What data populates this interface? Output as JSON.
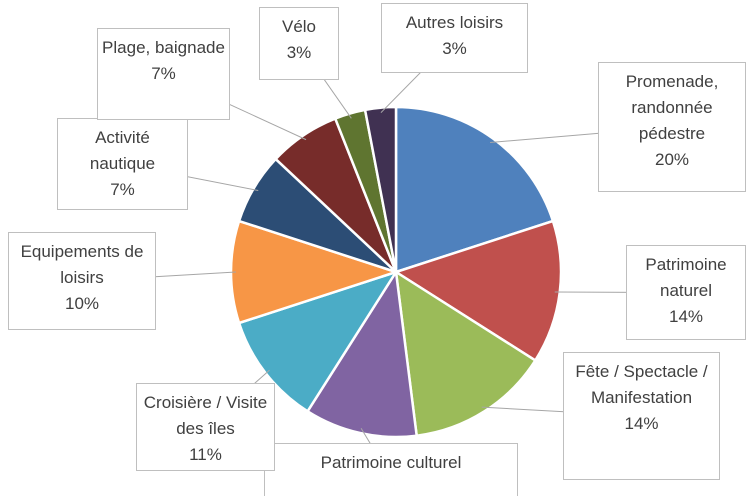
{
  "chart_data": {
    "type": "pie",
    "categories": [
      "Promenade, randonnée pédestre",
      "Patrimoine naturel",
      "Fête / Spectacle / Manifestation",
      "Patrimoine culturel",
      "Croisière / Visite des îles",
      "Equipements de loisirs",
      "Activité nautique",
      "Plage, baignade",
      "Vélo",
      "Autres loisirs"
    ],
    "values": [
      20,
      14,
      14,
      11,
      11,
      10,
      7,
      7,
      3,
      3
    ],
    "value_labels": [
      "20%",
      "14%",
      "14%",
      null,
      "11%",
      "10%",
      "7%",
      "7%",
      "3%",
      "3%"
    ],
    "colors": [
      "#4f81bd",
      "#c0504d",
      "#9bbb59",
      "#8064a2",
      "#4bacc6",
      "#f79646",
      "#2c4d75",
      "#772c2a",
      "#5f7530",
      "#403152"
    ]
  }
}
